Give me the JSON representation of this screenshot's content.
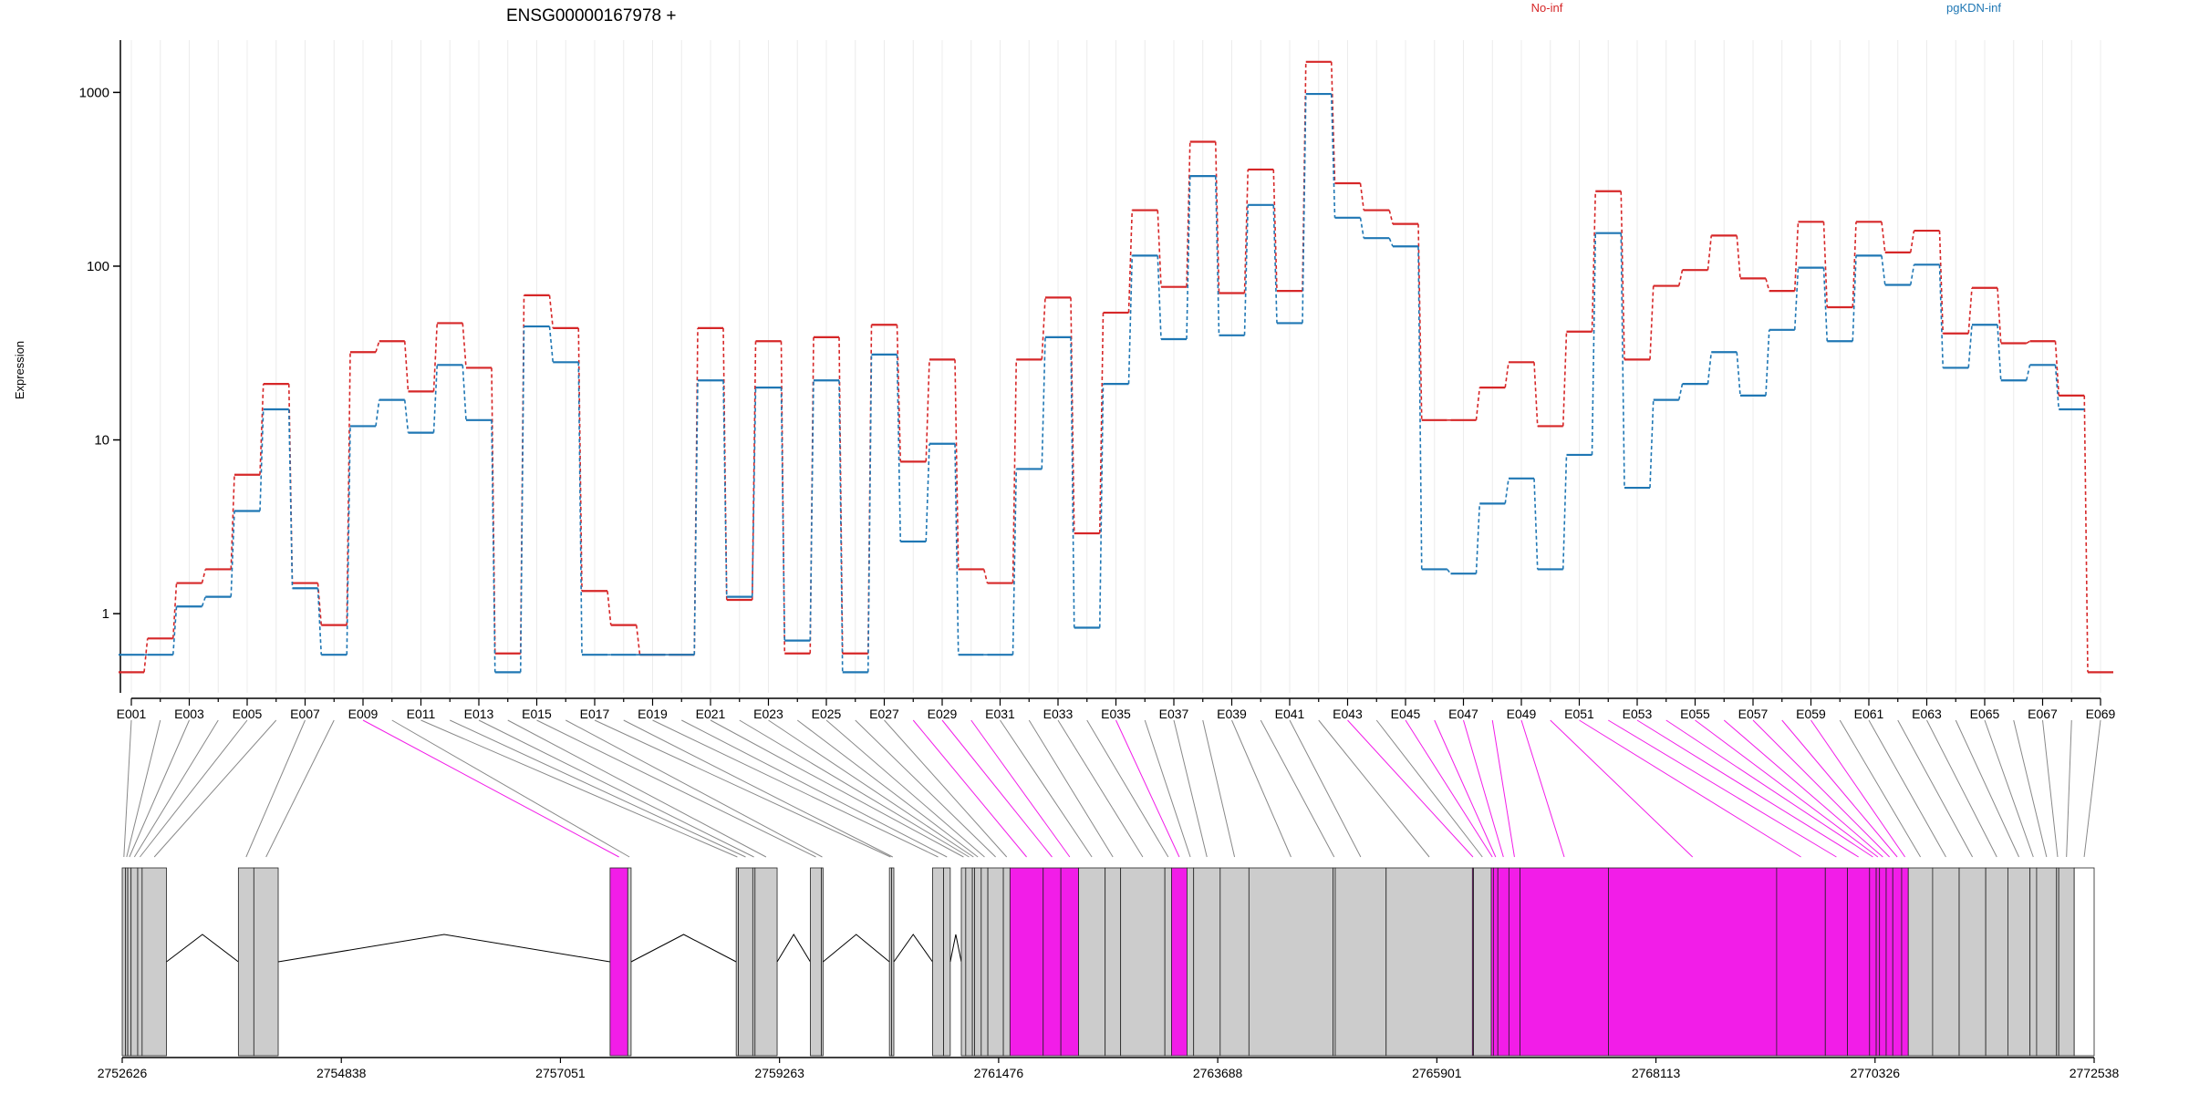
{
  "chart_data": {
    "type": "line",
    "title": "ENSG00000167978 +",
    "ylabel": "Expression",
    "y_scale": "log",
    "ylim": [
      0.35,
      2000
    ],
    "y_ticks": [
      {
        "value": 1,
        "label": "1"
      },
      {
        "value": 10,
        "label": "10"
      },
      {
        "value": 100,
        "label": "100"
      },
      {
        "value": 1000,
        "label": "1000"
      }
    ],
    "x_tick_labels": [
      "E001",
      "E003",
      "E005",
      "E007",
      "E009",
      "E011",
      "E013",
      "E015",
      "E017",
      "E019",
      "E021",
      "E023",
      "E025",
      "E027",
      "E029",
      "E031",
      "E033",
      "E035",
      "E037",
      "E039",
      "E041",
      "E043",
      "E045",
      "E047",
      "E049",
      "E051",
      "E053",
      "E055",
      "E057",
      "E059",
      "E061",
      "E063",
      "E065",
      "E067",
      "E069"
    ],
    "legend": [
      "No-inf",
      "pgKDN-inf"
    ],
    "colors": {
      "No-inf": "#d62728",
      "pgKDN-inf": "#1f77b4"
    },
    "categories": [
      "E001",
      "E002",
      "E003",
      "E004",
      "E005",
      "E006",
      "E007",
      "E008",
      "E009",
      "E010",
      "E011",
      "E012",
      "E013",
      "E014",
      "E015",
      "E016",
      "E017",
      "E018",
      "E019",
      "E020",
      "E021",
      "E022",
      "E023",
      "E024",
      "E025",
      "E026",
      "E027",
      "E028",
      "E029",
      "E030",
      "E031",
      "E032",
      "E033",
      "E034",
      "E035",
      "E036",
      "E037",
      "E038",
      "E039",
      "E040",
      "E041",
      "E042",
      "E043",
      "E044",
      "E045",
      "E046",
      "E047",
      "E048",
      "E049",
      "E050",
      "E051",
      "E052",
      "E053",
      "E054",
      "E055",
      "E056",
      "E057",
      "E058",
      "E059",
      "E060",
      "E061",
      "E062",
      "E063",
      "E064",
      "E065",
      "E066",
      "E067",
      "E068",
      "E069"
    ],
    "series": [
      {
        "name": "No-inf",
        "values": [
          0.46,
          0.72,
          1.5,
          1.8,
          6.3,
          21,
          1.5,
          0.86,
          32,
          37,
          19,
          47,
          26,
          0.59,
          68,
          44,
          1.35,
          0.86,
          0.58,
          0.58,
          44,
          1.2,
          37,
          0.59,
          39,
          0.59,
          46,
          7.5,
          29,
          1.8,
          1.5,
          29,
          66,
          2.9,
          54,
          210,
          76,
          520,
          70,
          360,
          72,
          1500,
          300,
          210,
          175,
          13,
          13,
          20,
          28,
          12,
          42,
          270,
          29,
          77,
          95,
          150,
          85,
          72,
          180,
          58,
          180,
          120,
          160,
          41,
          75,
          36,
          37,
          18,
          0.46
        ]
      },
      {
        "name": "pgKDN-inf",
        "values": [
          0.58,
          0.58,
          1.1,
          1.25,
          3.9,
          15,
          1.4,
          0.58,
          12,
          17,
          11,
          27,
          13,
          0.46,
          45,
          28,
          0.58,
          0.58,
          0.58,
          0.58,
          22,
          1.25,
          20,
          0.7,
          22,
          0.46,
          31,
          2.6,
          9.5,
          0.58,
          0.58,
          6.8,
          39,
          0.83,
          21,
          115,
          38,
          330,
          40,
          225,
          47,
          980,
          190,
          145,
          130,
          1.8,
          1.7,
          4.3,
          6,
          1.8,
          8.2,
          155,
          5.3,
          17,
          21,
          32,
          18,
          43,
          98,
          37,
          115,
          78,
          102,
          26,
          46,
          22,
          27,
          15,
          null
        ]
      }
    ],
    "gene_model": {
      "axis_ticks": [
        "2752626",
        "2754838",
        "2757051",
        "2759263",
        "2761476",
        "2763688",
        "2765901",
        "2768113",
        "2770326",
        "2772538"
      ],
      "exon_flags": [
        "plain",
        "plain",
        "plain",
        "plain",
        "plain",
        "plain",
        "plain",
        "plain",
        "magenta",
        "plain",
        "plain",
        "plain",
        "plain",
        "plain",
        "plain",
        "plain",
        "plain",
        "plain",
        "plain",
        "plain",
        "plain",
        "plain",
        "plain",
        "plain",
        "plain",
        "plain",
        "plain",
        "magenta",
        "magenta",
        "magenta",
        "plain",
        "plain",
        "plain",
        "plain",
        "magenta",
        "plain",
        "plain",
        "plain",
        "plain",
        "plain",
        "plain",
        "plain",
        "magenta",
        "plain",
        "magenta",
        "magenta",
        "magenta",
        "magenta",
        "magenta",
        "magenta",
        "magenta",
        "magenta",
        "magenta",
        "magenta",
        "magenta",
        "magenta",
        "magenta",
        "magenta",
        "magenta",
        "plain",
        "plain",
        "plain",
        "plain",
        "plain",
        "plain",
        "plain",
        "plain",
        "plain",
        "plain"
      ],
      "colors": {
        "magenta": "#f21de8",
        "plain": "#cccccc",
        "outline": "#222222"
      }
    }
  }
}
